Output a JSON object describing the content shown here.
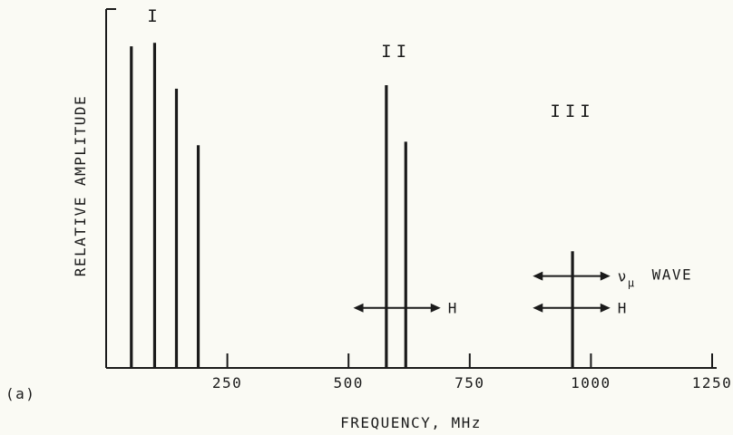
{
  "chart_data": {
    "type": "bar",
    "panel_label": "(a)",
    "xlabel": "FREQUENCY, MHz",
    "ylabel": "RELATIVE AMPLITUDE",
    "xlim": [
      0,
      1250
    ],
    "ylim": [
      0,
      1
    ],
    "x_ticks": [
      250,
      500,
      750,
      1000,
      1250
    ],
    "x_tick_labels": [
      "250",
      "500",
      "750",
      "1000",
      "1250"
    ],
    "grid": false,
    "series": [
      {
        "x": [
          52,
          100,
          145,
          190
        ],
        "values": [
          0.91,
          0.92,
          0.79,
          0.63
        ]
      },
      {
        "x": [
          578,
          618
        ],
        "values": [
          0.8,
          0.64
        ]
      },
      {
        "x": [
          962
        ],
        "values": [
          0.33
        ]
      }
    ],
    "group_labels": [
      {
        "text": "I",
        "x": 100,
        "y": 0.98
      },
      {
        "text": "II",
        "x": 598,
        "y": 0.88
      },
      {
        "text": "III",
        "x": 962,
        "y": 0.71
      }
    ],
    "annotations": [
      {
        "text": "H",
        "x_from": 510,
        "x_to": 690,
        "y": 0.17,
        "style": "double-arrow"
      },
      {
        "text": "H",
        "x_from": 880,
        "x_to": 1040,
        "y": 0.17,
        "style": "double-arrow"
      },
      {
        "text": "ν",
        "subscript": "μ",
        "suffix": "WAVE",
        "x_from": 880,
        "x_to": 1040,
        "y": 0.26,
        "style": "double-arrow"
      }
    ]
  }
}
